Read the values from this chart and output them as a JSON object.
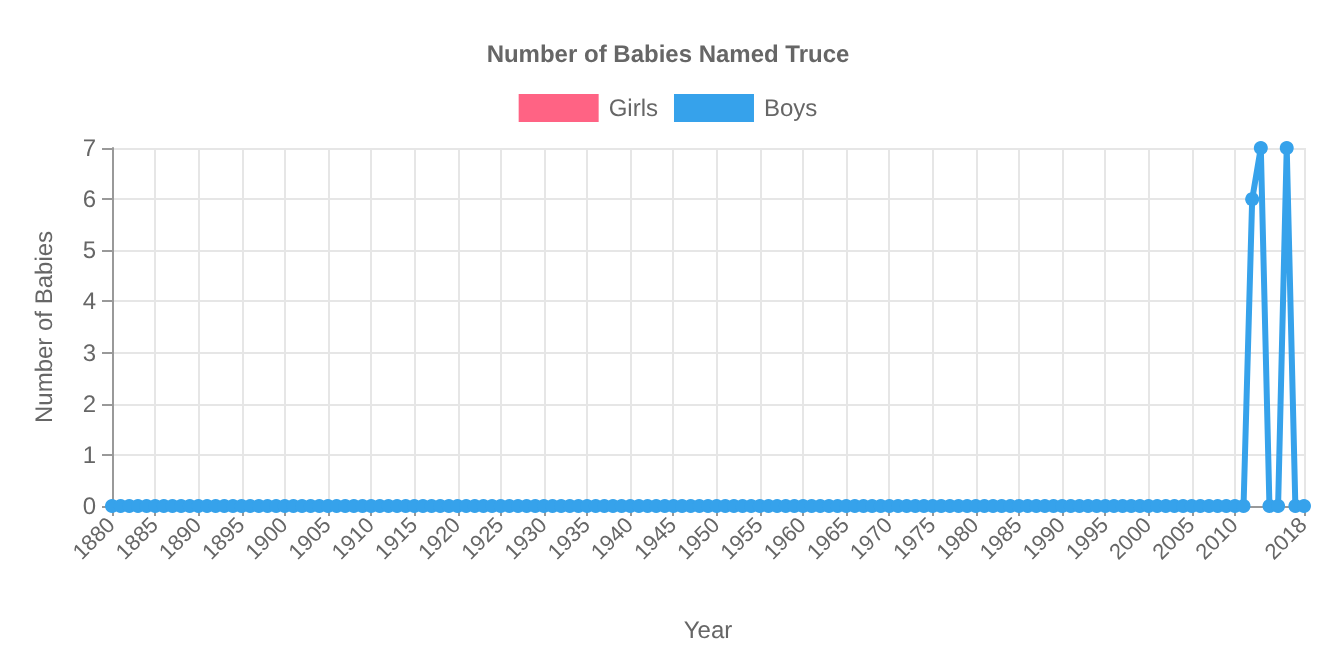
{
  "chart_data": {
    "type": "line",
    "title": "Number of Babies Named Truce",
    "xlabel": "Year",
    "ylabel": "Number of Babies",
    "x": [
      1880,
      1881,
      1882,
      1883,
      1884,
      1885,
      1886,
      1887,
      1888,
      1889,
      1890,
      1891,
      1892,
      1893,
      1894,
      1895,
      1896,
      1897,
      1898,
      1899,
      1900,
      1901,
      1902,
      1903,
      1904,
      1905,
      1906,
      1907,
      1908,
      1909,
      1910,
      1911,
      1912,
      1913,
      1914,
      1915,
      1916,
      1917,
      1918,
      1919,
      1920,
      1921,
      1922,
      1923,
      1924,
      1925,
      1926,
      1927,
      1928,
      1929,
      1930,
      1931,
      1932,
      1933,
      1934,
      1935,
      1936,
      1937,
      1938,
      1939,
      1940,
      1941,
      1942,
      1943,
      1944,
      1945,
      1946,
      1947,
      1948,
      1949,
      1950,
      1951,
      1952,
      1953,
      1954,
      1955,
      1956,
      1957,
      1958,
      1959,
      1960,
      1961,
      1962,
      1963,
      1964,
      1965,
      1966,
      1967,
      1968,
      1969,
      1970,
      1971,
      1972,
      1973,
      1974,
      1975,
      1976,
      1977,
      1978,
      1979,
      1980,
      1981,
      1982,
      1983,
      1984,
      1985,
      1986,
      1987,
      1988,
      1989,
      1990,
      1991,
      1992,
      1993,
      1994,
      1995,
      1996,
      1997,
      1998,
      1999,
      2000,
      2001,
      2002,
      2003,
      2004,
      2005,
      2006,
      2007,
      2008,
      2009,
      2010,
      2011,
      2012,
      2013,
      2014,
      2015,
      2016,
      2017,
      2018
    ],
    "series": [
      {
        "name": "Girls",
        "color": "#ff6384",
        "values": [
          null,
          null,
          null,
          null,
          null,
          null,
          null,
          null,
          null,
          null,
          null,
          null,
          null,
          null,
          null,
          null,
          null,
          null,
          null,
          null,
          null,
          null,
          null,
          null,
          null,
          null,
          null,
          null,
          null,
          null,
          null,
          null,
          null,
          null,
          null,
          null,
          null,
          null,
          null,
          null,
          null,
          null,
          null,
          null,
          null,
          null,
          null,
          null,
          null,
          null,
          null,
          null,
          null,
          null,
          null,
          null,
          null,
          null,
          null,
          null,
          null,
          null,
          null,
          null,
          null,
          null,
          null,
          null,
          null,
          null,
          null,
          null,
          null,
          null,
          null,
          null,
          null,
          null,
          null,
          null,
          null,
          null,
          null,
          null,
          null,
          null,
          null,
          null,
          null,
          null,
          null,
          null,
          null,
          null,
          null,
          null,
          null,
          null,
          null,
          null,
          null,
          null,
          null,
          null,
          null,
          null,
          null,
          null,
          null,
          null,
          null,
          null,
          null,
          null,
          null,
          null,
          null,
          null,
          null,
          null,
          null,
          null,
          null,
          null,
          null,
          null,
          null,
          null,
          null,
          null,
          null,
          null,
          null,
          null,
          null,
          null,
          null,
          null,
          null
        ]
      },
      {
        "name": "Boys",
        "color": "#36a2eb",
        "values": [
          0,
          0,
          0,
          0,
          0,
          0,
          0,
          0,
          0,
          0,
          0,
          0,
          0,
          0,
          0,
          0,
          0,
          0,
          0,
          0,
          0,
          0,
          0,
          0,
          0,
          0,
          0,
          0,
          0,
          0,
          0,
          0,
          0,
          0,
          0,
          0,
          0,
          0,
          0,
          0,
          0,
          0,
          0,
          0,
          0,
          0,
          0,
          0,
          0,
          0,
          0,
          0,
          0,
          0,
          0,
          0,
          0,
          0,
          0,
          0,
          0,
          0,
          0,
          0,
          0,
          0,
          0,
          0,
          0,
          0,
          0,
          0,
          0,
          0,
          0,
          0,
          0,
          0,
          0,
          0,
          0,
          0,
          0,
          0,
          0,
          0,
          0,
          0,
          0,
          0,
          0,
          0,
          0,
          0,
          0,
          0,
          0,
          0,
          0,
          0,
          0,
          0,
          0,
          0,
          0,
          0,
          0,
          0,
          0,
          0,
          0,
          0,
          0,
          0,
          0,
          0,
          0,
          0,
          0,
          0,
          0,
          0,
          0,
          0,
          0,
          0,
          0,
          0,
          0,
          0,
          0,
          0,
          6,
          7,
          0,
          0,
          7,
          0,
          0
        ]
      }
    ],
    "xlim": [
      1880,
      2018
    ],
    "xticks": [
      1880,
      1885,
      1890,
      1895,
      1900,
      1905,
      1910,
      1915,
      1920,
      1925,
      1930,
      1935,
      1940,
      1945,
      1950,
      1955,
      1960,
      1965,
      1970,
      1975,
      1980,
      1985,
      1990,
      1995,
      2000,
      2005,
      2010,
      2018
    ],
    "ylim": [
      0,
      7
    ],
    "yticks": [
      0,
      1,
      2,
      3,
      4,
      5,
      6,
      7
    ],
    "grid": true,
    "legend": "top",
    "marker": "circle",
    "line_style": "solid"
  }
}
